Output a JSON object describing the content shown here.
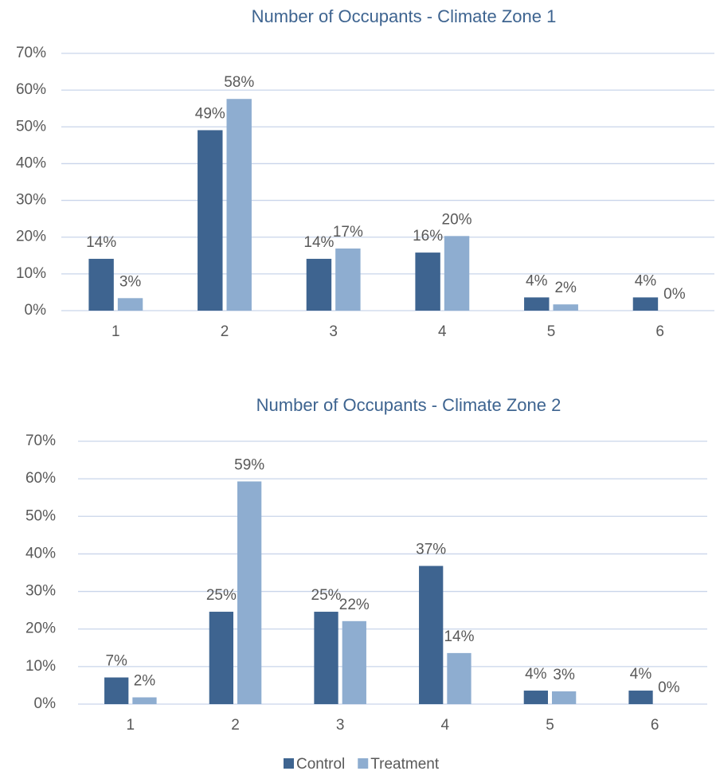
{
  "chart_data": [
    {
      "type": "bar",
      "title": "Number of Occupants - Climate Zone 1",
      "categories": [
        "1",
        "2",
        "3",
        "4",
        "5",
        "6"
      ],
      "series": [
        {
          "color": "#3e6490",
          "values": [
            14.1,
            49.1,
            14.1,
            15.8,
            3.6,
            3.6
          ],
          "value_labels": [
            "14%",
            "49%",
            "14%",
            "16%",
            "4%",
            "4%"
          ]
        },
        {
          "color": "#8eadd0",
          "values": [
            3.4,
            57.6,
            16.9,
            20.3,
            1.7,
            0
          ],
          "value_labels": [
            "3%",
            "58%",
            "17%",
            "20%",
            "2%",
            "0%"
          ]
        }
      ],
      "ylim": [
        0,
        70
      ],
      "yticks": [
        {
          "value": 0,
          "label": "0%"
        },
        {
          "value": 10,
          "label": "10%"
        },
        {
          "value": 20,
          "label": "20%"
        },
        {
          "value": 30,
          "label": "30%"
        },
        {
          "value": 40,
          "label": "40%"
        },
        {
          "value": 50,
          "label": "50%"
        },
        {
          "value": 60,
          "label": "60%"
        },
        {
          "value": 70,
          "label": "70%"
        }
      ],
      "grid": true
    },
    {
      "type": "bar",
      "title": "Number of Occupants - Climate Zone 2",
      "categories": [
        "1",
        "2",
        "3",
        "4",
        "5",
        "6"
      ],
      "series": [
        {
          "name": "Control",
          "color": "#3e6490",
          "values": [
            7.1,
            24.6,
            24.6,
            36.8,
            3.6,
            3.6
          ],
          "value_labels": [
            "7%",
            "25%",
            "25%",
            "37%",
            "4%",
            "4%"
          ]
        },
        {
          "name": "Treatment",
          "color": "#8eadd0",
          "values": [
            1.8,
            59.3,
            22.1,
            13.6,
            3.4,
            0
          ],
          "value_labels": [
            "2%",
            "59%",
            "22%",
            "14%",
            "3%",
            "0%"
          ]
        }
      ],
      "ylim": [
        0,
        70
      ],
      "yticks": [
        {
          "value": 0,
          "label": "0%"
        },
        {
          "value": 10,
          "label": "10%"
        },
        {
          "value": 20,
          "label": "20%"
        },
        {
          "value": 30,
          "label": "30%"
        },
        {
          "value": 40,
          "label": "40%"
        },
        {
          "value": 50,
          "label": "50%"
        },
        {
          "value": 60,
          "label": "60%"
        },
        {
          "value": 70,
          "label": "70%"
        }
      ],
      "grid": true,
      "legend": "bottom"
    }
  ]
}
